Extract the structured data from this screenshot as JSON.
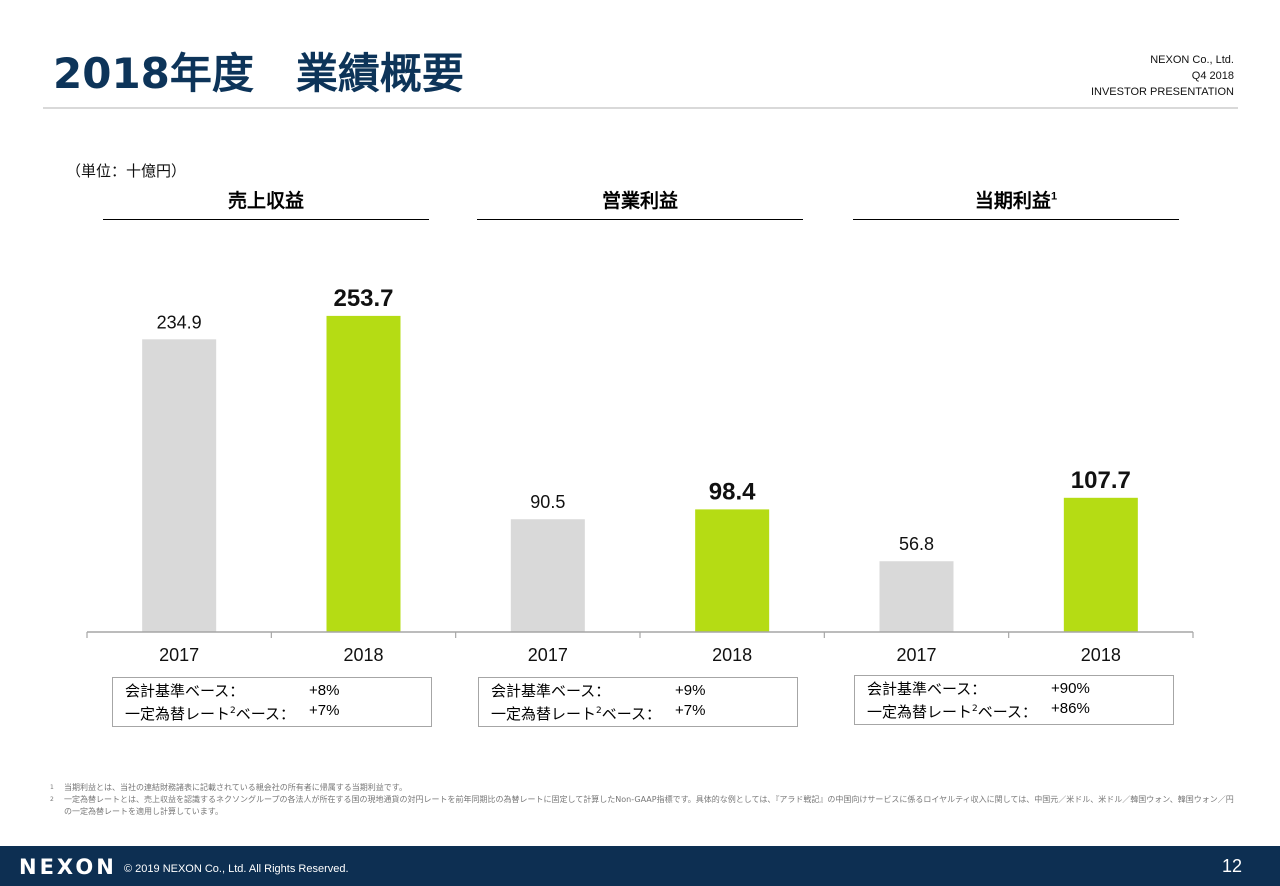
{
  "header": {
    "title": "2018年度　業績概要",
    "company": "NEXON Co., Ltd.",
    "period": "Q4 2018",
    "doc_type": "INVESTOR PRESENTATION"
  },
  "unit_label": "（単位：十億円）",
  "colors": {
    "prior_year": "#d9d9d9",
    "current_year": "#b5dc14",
    "brand_navy": "#0d2f52",
    "title_navy": "#0d3459"
  },
  "chart_data": {
    "type": "bar",
    "unit": "十億円",
    "categories": [
      "2017",
      "2018"
    ],
    "ylim": [
      0,
      260
    ],
    "grid": false,
    "panels": [
      {
        "title": "売上収益",
        "footnote_mark": "",
        "values": [
          234.9,
          253.7
        ],
        "labels": [
          "234.9",
          "253.7"
        ]
      },
      {
        "title": "営業利益",
        "footnote_mark": "",
        "values": [
          90.5,
          98.4
        ],
        "labels": [
          "90.5",
          "98.4"
        ]
      },
      {
        "title": "当期利益",
        "footnote_mark": "1",
        "values": [
          56.8,
          107.7
        ],
        "labels": [
          "56.8",
          "107.7"
        ]
      }
    ]
  },
  "growth_boxes": [
    {
      "reported_label": "会計基準ベース：",
      "reported": "+8%",
      "cc_label_pre": "一定為替レート",
      "cc_mark": "2",
      "cc_label_post": "ベース：",
      "constant_currency": "+7%"
    },
    {
      "reported_label": "会計基準ベース：",
      "reported": "+9%",
      "cc_label_pre": "一定為替レート",
      "cc_mark": "2",
      "cc_label_post": "ベース：",
      "constant_currency": "+7%"
    },
    {
      "reported_label": "会計基準ベース：",
      "reported": "+90%",
      "cc_label_pre": "一定為替レート",
      "cc_mark": "2",
      "cc_label_post": "ベース：",
      "constant_currency": "+86%"
    }
  ],
  "footnotes": [
    {
      "num": "1",
      "text": "当期利益とは、当社の連結財務諸表に記載されている親会社の所有者に帰属する当期利益です。"
    },
    {
      "num": "2",
      "text": "一定為替レートとは、売上収益を認識するネクソングループの各法人が所在する国の現地通貨の対円レートを前年同期比の為替レートに固定して計算したNon-GAAP指標です。具体的な例としては、『アラド戦記』の中国向けサービスに係るロイヤルティ収入に関しては、中国元／米ドル、米ドル／韓国ウォン、韓国ウォン／円の一定為替レートを適用し計算しています。"
    }
  ],
  "footer": {
    "logo": "NEXON",
    "copyright": "© 2019 NEXON Co., Ltd. All Rights Reserved.",
    "page_number": "12"
  }
}
